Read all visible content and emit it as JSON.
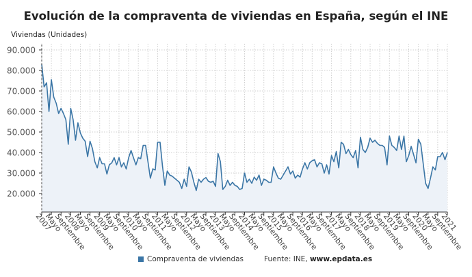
{
  "chart_data": {
    "type": "area",
    "title": "Evolución de la compraventa de viviendas en España, según el INE",
    "ylabel": "Viviendas (Unidades)",
    "xlabel": "",
    "ylim": [
      11000,
      93000
    ],
    "yticks": [
      20000,
      30000,
      40000,
      50000,
      60000,
      70000,
      80000,
      90000
    ],
    "ytick_labels": [
      "20.000",
      "30.000",
      "40.000",
      "50.000",
      "60.000",
      "70.000",
      "80.000",
      "90.000"
    ],
    "x_start": "2007-01",
    "x_end": "2021-01",
    "frequency": "monthly",
    "xtick_labels": [
      "2007",
      "Mayo",
      "Septiembre",
      "2008",
      "Mayo",
      "Septiembre",
      "2009",
      "Mayo",
      "Septiembre",
      "2010",
      "Mayo",
      "Septiembre",
      "2011",
      "Mayo",
      "Septiembre",
      "2012",
      "Mayo",
      "Septiembre",
      "2013",
      "Mayo",
      "Septiembre",
      "2014",
      "Mayo",
      "Septiembre",
      "2015",
      "Mayo",
      "Septiembre",
      "2016",
      "Mayo",
      "Septiembre",
      "2017",
      "Mayo",
      "Septiembre",
      "2018",
      "Mayo",
      "Septiembre",
      "2019",
      "Mayo",
      "Septiembre",
      "2020",
      "Mayo",
      "Septiembre",
      "2021"
    ],
    "grid": true,
    "legend_placement": "bottom",
    "series": [
      {
        "name": "Compraventa de viviendas",
        "color": "#3b76a6",
        "fill": "#edf2f8",
        "values": [
          83000,
          72000,
          74000,
          60000,
          75500,
          67000,
          64000,
          59000,
          61500,
          59000,
          56000,
          44000,
          61500,
          56000,
          46000,
          54500,
          49500,
          47000,
          45500,
          38000,
          45500,
          42000,
          35500,
          32500,
          37500,
          34500,
          34500,
          29500,
          34000,
          35000,
          37500,
          34000,
          37500,
          33000,
          35000,
          32000,
          37500,
          41000,
          37500,
          34000,
          37500,
          37000,
          43500,
          43500,
          35500,
          27500,
          32000,
          31500,
          45000,
          45000,
          33500,
          24000,
          31000,
          29000,
          28500,
          27500,
          26500,
          25500,
          22500,
          27000,
          23500,
          33000,
          30500,
          25500,
          21500,
          27000,
          25500,
          27000,
          27800,
          26000,
          25500,
          26000,
          23500,
          39500,
          35500,
          22000,
          23500,
          26500,
          24000,
          25500,
          24000,
          23500,
          22000,
          22500,
          30000,
          25500,
          27000,
          25000,
          28000,
          26500,
          29000,
          24000,
          27000,
          26500,
          25500,
          25500,
          33000,
          30000,
          27500,
          27000,
          29000,
          31000,
          33000,
          29500,
          31000,
          27500,
          29000,
          28000,
          32000,
          35000,
          32000,
          35000,
          36000,
          36500,
          33000,
          35000,
          34500,
          30000,
          34000,
          29500,
          38500,
          35500,
          40500,
          32500,
          45000,
          44000,
          39500,
          41500,
          39000,
          37500,
          41000,
          32500,
          47500,
          41500,
          40000,
          42500,
          47000,
          45000,
          46000,
          44500,
          43500,
          43500,
          42500,
          34000,
          48000,
          43500,
          42500,
          41000,
          48000,
          41500,
          48000,
          35500,
          38500,
          43000,
          39000,
          35000,
          46500,
          44000,
          34500,
          25000,
          22500,
          27500,
          33000,
          31500,
          38000,
          38000,
          40000,
          36500,
          40000
        ]
      }
    ],
    "source_prefix": "Fuente: INE, ",
    "source_site": "www.epdata.es"
  }
}
